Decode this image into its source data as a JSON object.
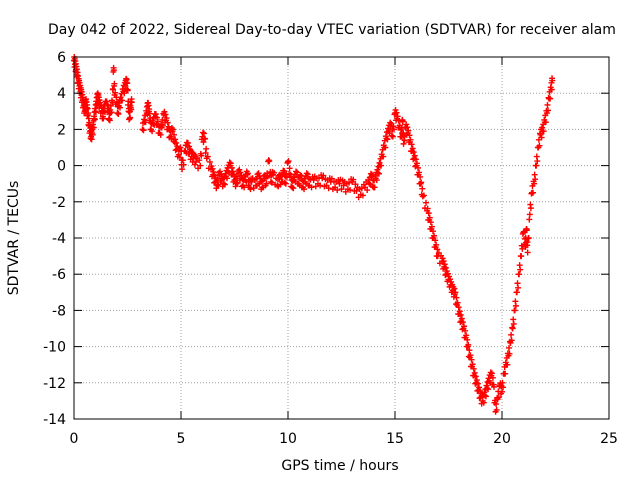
{
  "chart_data": {
    "type": "scatter",
    "title": "Day 042 of 2022, Sidereal Day-to-day VTEC variation (SDTVAR) for receiver alam",
    "xlabel": "GPS time / hours",
    "ylabel": "SDTVAR / TECUs",
    "xlim": [
      0,
      25
    ],
    "ylim": [
      -14,
      6
    ],
    "grid": true,
    "marker": "plus",
    "color": "#ff0000",
    "x_ticks": [
      0,
      5,
      10,
      15,
      20,
      25
    ],
    "y_ticks": [
      -14,
      -12,
      -10,
      -8,
      -6,
      -4,
      -2,
      0,
      2,
      4,
      6
    ],
    "x_tick_labels": [
      "0",
      "5",
      "10",
      "15",
      "20",
      "25"
    ],
    "y_tick_labels": [
      "-14",
      "-12",
      "-10",
      "-8",
      "-6",
      "-4",
      "-2",
      "0",
      "2",
      "4",
      "6"
    ],
    "series": [
      {
        "name": "SDTVAR",
        "points": [
          [
            0.0,
            5.8
          ],
          [
            0.05,
            5.6
          ],
          [
            0.1,
            5.3
          ],
          [
            0.15,
            5.0
          ],
          [
            0.2,
            4.6
          ],
          [
            0.25,
            4.4
          ],
          [
            0.3,
            4.1
          ],
          [
            0.35,
            3.9
          ],
          [
            0.4,
            3.6
          ],
          [
            0.45,
            3.3
          ],
          [
            0.5,
            3.0
          ],
          [
            0.55,
            3.5
          ],
          [
            0.6,
            3.2
          ],
          [
            0.65,
            2.8
          ],
          [
            0.7,
            2.2
          ],
          [
            0.75,
            1.9
          ],
          [
            0.8,
            1.6
          ],
          [
            0.85,
            1.8
          ],
          [
            0.9,
            2.1
          ],
          [
            0.95,
            2.6
          ],
          [
            1.0,
            3.0
          ],
          [
            1.05,
            3.4
          ],
          [
            1.1,
            3.8
          ],
          [
            1.15,
            3.6
          ],
          [
            1.2,
            3.3
          ],
          [
            1.3,
            3.0
          ],
          [
            1.35,
            2.7
          ],
          [
            1.4,
            3.0
          ],
          [
            1.5,
            3.4
          ],
          [
            1.6,
            3.0
          ],
          [
            1.65,
            2.6
          ],
          [
            1.7,
            2.9
          ],
          [
            1.8,
            3.5
          ],
          [
            1.85,
            5.4
          ],
          [
            1.9,
            3.9
          ],
          [
            2.0,
            3.4
          ],
          [
            2.05,
            2.9
          ],
          [
            2.1,
            3.3
          ],
          [
            2.2,
            3.6
          ],
          [
            2.3,
            4.1
          ],
          [
            2.4,
            4.4
          ],
          [
            2.45,
            4.6
          ],
          [
            2.5,
            4.2
          ],
          [
            2.55,
            3.0
          ],
          [
            2.6,
            2.6
          ],
          [
            2.65,
            3.2
          ],
          [
            2.7,
            3.5
          ],
          [
            3.2,
            2.0
          ],
          [
            3.3,
            2.4
          ],
          [
            3.4,
            2.9
          ],
          [
            3.45,
            3.3
          ],
          [
            3.5,
            3.0
          ],
          [
            3.55,
            2.5
          ],
          [
            3.6,
            2.0
          ],
          [
            3.7,
            2.3
          ],
          [
            3.8,
            2.7
          ],
          [
            3.9,
            2.3
          ],
          [
            4.0,
            1.8
          ],
          [
            4.1,
            2.1
          ],
          [
            4.2,
            2.8
          ],
          [
            4.3,
            2.5
          ],
          [
            4.4,
            2.0
          ],
          [
            4.5,
            1.6
          ],
          [
            4.6,
            1.9
          ],
          [
            4.7,
            1.3
          ],
          [
            4.8,
            0.9
          ],
          [
            4.9,
            0.6
          ],
          [
            5.0,
            0.8
          ],
          [
            5.05,
            -0.2
          ],
          [
            5.2,
            0.8
          ],
          [
            5.3,
            1.1
          ],
          [
            5.4,
            0.7
          ],
          [
            5.5,
            0.5
          ],
          [
            5.6,
            0.4
          ],
          [
            5.7,
            0.2
          ],
          [
            5.9,
            0.0
          ],
          [
            6.0,
            1.6
          ],
          [
            6.1,
            1.5
          ],
          [
            6.2,
            0.4
          ],
          [
            6.4,
            -0.2
          ],
          [
            6.5,
            -0.5
          ],
          [
            6.6,
            -0.9
          ],
          [
            6.7,
            -1.1
          ],
          [
            6.8,
            -0.5
          ],
          [
            6.9,
            -0.8
          ],
          [
            7.0,
            -1.0
          ],
          [
            7.1,
            -0.6
          ],
          [
            7.2,
            -0.3
          ],
          [
            7.3,
            0.0
          ],
          [
            7.4,
            -0.5
          ],
          [
            7.5,
            -0.8
          ],
          [
            7.6,
            -1.0
          ],
          [
            7.7,
            -0.4
          ],
          [
            7.8,
            -0.7
          ],
          [
            7.9,
            -1.1
          ],
          [
            8.0,
            -0.8
          ],
          [
            8.1,
            -0.5
          ],
          [
            8.2,
            -1.2
          ],
          [
            8.3,
            -0.9
          ],
          [
            8.5,
            -1.1
          ],
          [
            8.6,
            -0.6
          ],
          [
            8.7,
            -0.9
          ],
          [
            8.8,
            -1.2
          ],
          [
            8.9,
            -0.7
          ],
          [
            9.0,
            -1.0
          ],
          [
            9.1,
            0.3
          ],
          [
            9.2,
            -0.9
          ],
          [
            9.3,
            -0.5
          ],
          [
            9.5,
            -1.1
          ],
          [
            9.6,
            -0.7
          ],
          [
            9.7,
            -0.9
          ],
          [
            9.8,
            -0.4
          ],
          [
            9.9,
            -1.0
          ],
          [
            10.0,
            0.2
          ],
          [
            10.1,
            -0.6
          ],
          [
            10.2,
            -1.2
          ],
          [
            10.3,
            -0.8
          ],
          [
            10.4,
            -0.5
          ],
          [
            10.5,
            -1.0
          ],
          [
            10.6,
            -0.7
          ],
          [
            10.7,
            -1.2
          ],
          [
            10.8,
            -0.9
          ],
          [
            10.9,
            -0.6
          ],
          [
            11.0,
            -1.1
          ],
          [
            11.2,
            -0.8
          ],
          [
            11.4,
            -1.0
          ],
          [
            11.6,
            -0.7
          ],
          [
            11.8,
            -1.1
          ],
          [
            12.0,
            -0.9
          ],
          [
            12.2,
            -1.2
          ],
          [
            12.4,
            -1.0
          ],
          [
            12.6,
            -1.1
          ],
          [
            12.8,
            -1.3
          ],
          [
            13.0,
            -0.9
          ],
          [
            13.2,
            -1.4
          ],
          [
            13.4,
            -1.6
          ],
          [
            13.6,
            -1.2
          ],
          [
            13.8,
            -1.0
          ],
          [
            13.9,
            -0.6
          ],
          [
            14.0,
            -1.2
          ],
          [
            14.1,
            -0.7
          ],
          [
            14.2,
            -0.4
          ],
          [
            14.3,
            0.0
          ],
          [
            14.4,
            0.5
          ],
          [
            14.5,
            1.0
          ],
          [
            14.6,
            1.5
          ],
          [
            14.7,
            1.9
          ],
          [
            14.8,
            2.2
          ],
          [
            14.9,
            1.6
          ],
          [
            15.0,
            2.9
          ],
          [
            15.1,
            2.6
          ],
          [
            15.2,
            2.1
          ],
          [
            15.3,
            1.6
          ],
          [
            15.35,
            2.5
          ],
          [
            15.4,
            1.2
          ],
          [
            15.5,
            2.1
          ],
          [
            15.6,
            1.8
          ],
          [
            15.7,
            1.3
          ],
          [
            15.8,
            0.8
          ],
          [
            15.9,
            0.4
          ],
          [
            16.0,
            0.0
          ],
          [
            16.1,
            -0.5
          ],
          [
            16.2,
            -1.0
          ],
          [
            16.3,
            -1.7
          ],
          [
            16.5,
            -2.5
          ],
          [
            16.6,
            -3.0
          ],
          [
            16.7,
            -3.5
          ],
          [
            16.8,
            -4.0
          ],
          [
            16.9,
            -4.5
          ],
          [
            17.0,
            -5.0
          ],
          [
            17.2,
            -5.3
          ],
          [
            17.3,
            -5.6
          ],
          [
            17.4,
            -6.0
          ],
          [
            17.5,
            -6.3
          ],
          [
            17.6,
            -6.6
          ],
          [
            17.7,
            -6.9
          ],
          [
            17.8,
            -7.1
          ],
          [
            17.9,
            -7.7
          ],
          [
            18.0,
            -8.2
          ],
          [
            18.1,
            -8.6
          ],
          [
            18.2,
            -9.0
          ],
          [
            18.3,
            -9.5
          ],
          [
            18.4,
            -10.0
          ],
          [
            18.5,
            -10.6
          ],
          [
            18.6,
            -11.1
          ],
          [
            18.7,
            -11.6
          ],
          [
            18.8,
            -12.0
          ],
          [
            18.9,
            -12.4
          ],
          [
            19.0,
            -12.8
          ],
          [
            19.1,
            -13.0
          ],
          [
            19.2,
            -12.7
          ],
          [
            19.3,
            -12.3
          ],
          [
            19.4,
            -11.9
          ],
          [
            19.5,
            -11.6
          ],
          [
            19.6,
            -12.1
          ],
          [
            19.7,
            -13.6
          ],
          [
            19.8,
            -12.9
          ],
          [
            19.9,
            -12.2
          ],
          [
            20.0,
            -12.5
          ],
          [
            20.1,
            -11.5
          ],
          [
            20.2,
            -11.0
          ],
          [
            20.3,
            -10.5
          ],
          [
            20.4,
            -9.8
          ],
          [
            20.5,
            -9.0
          ],
          [
            20.6,
            -8.0
          ],
          [
            20.7,
            -7.0
          ],
          [
            20.8,
            -6.0
          ],
          [
            20.9,
            -5.0
          ],
          [
            21.0,
            -3.7
          ],
          [
            21.1,
            -4.5
          ],
          [
            21.15,
            -3.5
          ],
          [
            21.2,
            -4.8
          ],
          [
            21.3,
            -2.7
          ],
          [
            21.4,
            -1.5
          ],
          [
            21.5,
            -1.0
          ],
          [
            21.6,
            0.0
          ],
          [
            21.7,
            1.0
          ],
          [
            21.8,
            1.7
          ],
          [
            21.9,
            1.9
          ],
          [
            22.0,
            2.4
          ],
          [
            22.1,
            2.9
          ],
          [
            22.2,
            3.7
          ],
          [
            22.3,
            4.2
          ],
          [
            22.35,
            4.7
          ]
        ]
      }
    ]
  }
}
